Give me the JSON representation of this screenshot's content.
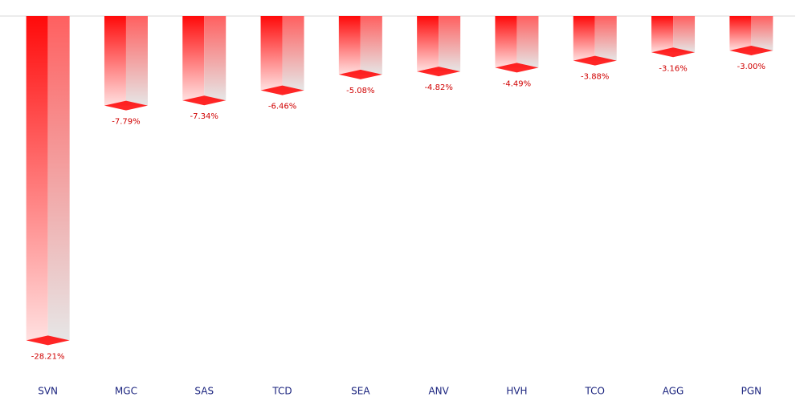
{
  "chart_data": {
    "type": "bar",
    "categories": [
      "SVN",
      "MGC",
      "SAS",
      "TCD",
      "SEA",
      "ANV",
      "HVH",
      "TCO",
      "AGG",
      "PGN"
    ],
    "values": [
      -28.21,
      -7.79,
      -7.34,
      -6.46,
      -5.08,
      -4.82,
      -4.49,
      -3.88,
      -3.16,
      -3.0
    ],
    "value_labels": [
      "-28.21%",
      "-7.79%",
      "-7.34%",
      "-6.46%",
      "-5.08%",
      "-4.82%",
      "-4.49%",
      "-3.88%",
      "-3.16%",
      "-3.00%"
    ],
    "color": "#ff0000",
    "ylim": [
      -30,
      0
    ]
  }
}
